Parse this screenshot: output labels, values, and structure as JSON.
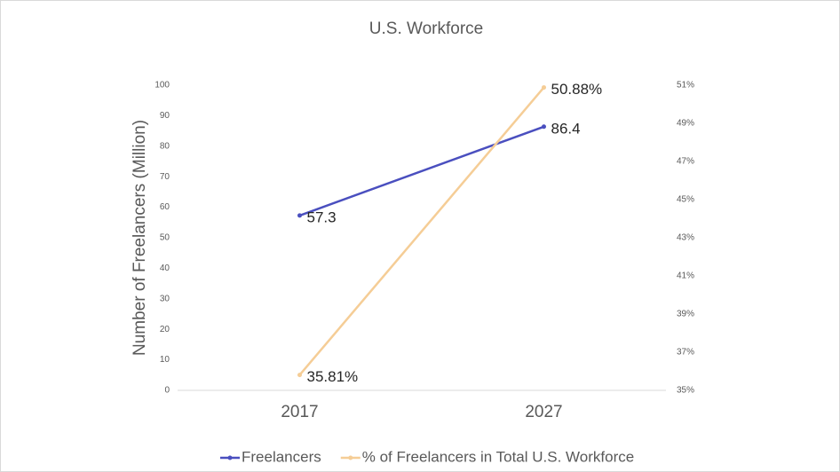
{
  "chart_data": {
    "type": "line",
    "title": "U.S. Workforce",
    "y_label": "Number of Freelancers (Million)",
    "categories": [
      "2017",
      "2027"
    ],
    "series": [
      {
        "name": "Freelancers",
        "color": "#4a4fbf",
        "values": [
          57.3,
          86.4
        ]
      },
      {
        "name": "% of Freelancers in Total U.S. Workforce",
        "color": "#f5cd96",
        "values": [
          35.81,
          50.88
        ],
        "value_labels": [
          "35.81%",
          "50.88%"
        ],
        "axis": "y2"
      }
    ],
    "ylim": [
      0,
      100
    ],
    "yticks": [
      0,
      10,
      20,
      30,
      40,
      50,
      60,
      70,
      80,
      90,
      100
    ],
    "y2lim": [
      35,
      51
    ],
    "y2ticks": [
      {
        "value": 35,
        "label": "35%"
      },
      {
        "value": 37,
        "label": "37%"
      },
      {
        "value": 39,
        "label": "39%"
      },
      {
        "value": 41,
        "label": "41%"
      },
      {
        "value": 43,
        "label": "43%"
      },
      {
        "value": 45,
        "label": "45%"
      },
      {
        "value": 47,
        "label": "47%"
      },
      {
        "value": 49,
        "label": "49%"
      },
      {
        "value": 51,
        "label": "51%"
      }
    ],
    "grid": false,
    "legend": "bottom"
  }
}
